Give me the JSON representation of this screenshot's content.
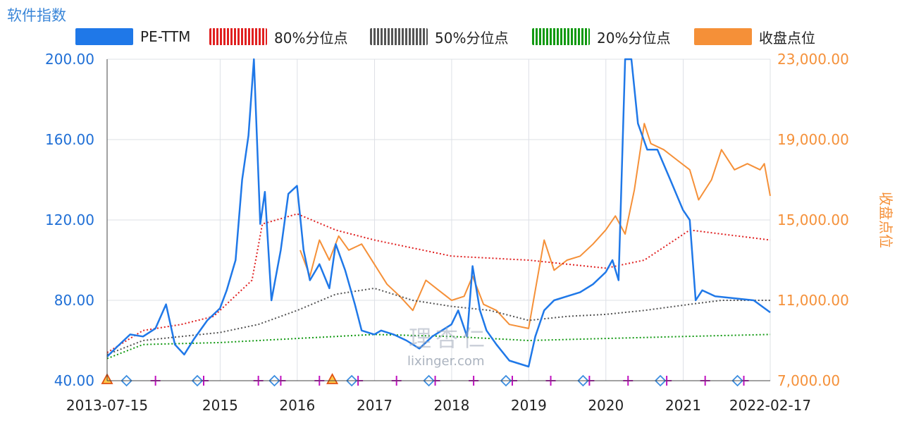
{
  "chart_data": {
    "type": "line",
    "title": "软件指数",
    "y_left": {
      "ticks": [
        "200.00",
        "160.00",
        "120.00",
        "80.00",
        "40.00"
      ],
      "range": [
        40,
        200
      ]
    },
    "y_right": {
      "label": "收盘点位",
      "ticks": [
        "23,000.00",
        "19,000.00",
        "15,000.00",
        "11,000.00",
        "7,000.00"
      ],
      "range": [
        7000,
        23000
      ]
    },
    "x_ticks": [
      "2013-07-15",
      "2015",
      "2016",
      "2017",
      "2018",
      "2019",
      "2020",
      "2021",
      "2022-02-17"
    ],
    "x_range": [
      "2013-07-15",
      "2022-02-17"
    ],
    "grid": true,
    "legend_position": "top",
    "colors": {
      "pe": "#1f78e8",
      "p80": "#e02020",
      "p50": "#555555",
      "p20": "#119911",
      "close": "#f59038",
      "plus": "#c010c0",
      "diamond": "#3c8ee0",
      "triangle": "#e05010"
    },
    "series": [
      {
        "name": "PE-TTM",
        "axis": "left",
        "points": [
          [
            "2013-07-15",
            52
          ],
          [
            "2013-09-01",
            57
          ],
          [
            "2013-11-01",
            63
          ],
          [
            "2014-01-01",
            62
          ],
          [
            "2014-03-01",
            66
          ],
          [
            "2014-04-20",
            78
          ],
          [
            "2014-06-01",
            58
          ],
          [
            "2014-07-15",
            53
          ],
          [
            "2014-09-01",
            61
          ],
          [
            "2014-11-01",
            70
          ],
          [
            "2014-12-31",
            76
          ],
          [
            "2015-02-01",
            85
          ],
          [
            "2015-03-15",
            100
          ],
          [
            "2015-04-15",
            140
          ],
          [
            "2015-05-15",
            162
          ],
          [
            "2015-06-10",
            200
          ],
          [
            "2015-07-10",
            118
          ],
          [
            "2015-08-01",
            134
          ],
          [
            "2015-09-01",
            80
          ],
          [
            "2015-10-15",
            105
          ],
          [
            "2015-11-20",
            133
          ],
          [
            "2015-12-31",
            137
          ],
          [
            "2016-01-31",
            105
          ],
          [
            "2016-03-01",
            90
          ],
          [
            "2016-04-15",
            98
          ],
          [
            "2016-06-01",
            86
          ],
          [
            "2016-07-01",
            108
          ],
          [
            "2016-08-15",
            95
          ],
          [
            "2016-09-30",
            78
          ],
          [
            "2016-11-01",
            65
          ],
          [
            "2016-12-31",
            63
          ],
          [
            "2017-02-01",
            65
          ],
          [
            "2017-04-01",
            63
          ],
          [
            "2017-06-01",
            60
          ],
          [
            "2017-08-01",
            56
          ],
          [
            "2017-10-01",
            62
          ],
          [
            "2017-12-31",
            68
          ],
          [
            "2018-02-01",
            75
          ],
          [
            "2018-03-15",
            62
          ],
          [
            "2018-04-10",
            97
          ],
          [
            "2018-05-15",
            75
          ],
          [
            "2018-06-15",
            65
          ],
          [
            "2018-08-01",
            58
          ],
          [
            "2018-10-01",
            50
          ],
          [
            "2018-12-31",
            47
          ],
          [
            "2019-02-01",
            62
          ],
          [
            "2019-03-15",
            75
          ],
          [
            "2019-05-01",
            80
          ],
          [
            "2019-07-01",
            82
          ],
          [
            "2019-09-01",
            84
          ],
          [
            "2019-11-01",
            88
          ],
          [
            "2019-12-31",
            94
          ],
          [
            "2020-02-01",
            100
          ],
          [
            "2020-03-01",
            90
          ],
          [
            "2020-04-01",
            200
          ],
          [
            "2020-05-01",
            200
          ],
          [
            "2020-06-01",
            168
          ],
          [
            "2020-07-15",
            155
          ],
          [
            "2020-09-01",
            155
          ],
          [
            "2020-11-01",
            140
          ],
          [
            "2020-12-31",
            125
          ],
          [
            "2021-02-01",
            120
          ],
          [
            "2021-03-01",
            80
          ],
          [
            "2021-04-01",
            85
          ],
          [
            "2021-06-01",
            82
          ],
          [
            "2021-09-01",
            81
          ],
          [
            "2021-12-01",
            80
          ],
          [
            "2022-02-17",
            74
          ]
        ]
      },
      {
        "name": "80%分位点",
        "axis": "left",
        "points": [
          [
            "2013-07-15",
            54
          ],
          [
            "2014-01-01",
            65
          ],
          [
            "2014-07-01",
            68
          ],
          [
            "2014-12-01",
            72
          ],
          [
            "2015-06-01",
            90
          ],
          [
            "2015-07-20",
            118
          ],
          [
            "2016-01-01",
            123
          ],
          [
            "2016-07-01",
            115
          ],
          [
            "2017-01-01",
            110
          ],
          [
            "2018-01-01",
            102
          ],
          [
            "2019-01-01",
            100
          ],
          [
            "2019-07-01",
            98
          ],
          [
            "2020-01-01",
            96
          ],
          [
            "2020-07-01",
            100
          ],
          [
            "2021-02-01",
            115
          ],
          [
            "2022-02-17",
            110
          ]
        ]
      },
      {
        "name": "50%分位点",
        "axis": "left",
        "points": [
          [
            "2013-07-15",
            53
          ],
          [
            "2014-01-01",
            60
          ],
          [
            "2014-07-01",
            62
          ],
          [
            "2015-01-01",
            64
          ],
          [
            "2015-07-01",
            68
          ],
          [
            "2016-01-01",
            75
          ],
          [
            "2016-07-01",
            83
          ],
          [
            "2016-12-31",
            86
          ],
          [
            "2017-07-01",
            80
          ],
          [
            "2018-01-01",
            77
          ],
          [
            "2018-07-01",
            75
          ],
          [
            "2019-01-01",
            70
          ],
          [
            "2019-07-01",
            72
          ],
          [
            "2020-01-01",
            73
          ],
          [
            "2020-07-01",
            75
          ],
          [
            "2021-02-01",
            78
          ],
          [
            "2021-07-01",
            80
          ],
          [
            "2022-02-17",
            80
          ]
        ]
      },
      {
        "name": "20%分位点",
        "axis": "left",
        "points": [
          [
            "2013-07-15",
            51
          ],
          [
            "2014-01-01",
            58
          ],
          [
            "2015-01-01",
            59
          ],
          [
            "2016-01-01",
            61
          ],
          [
            "2017-01-01",
            63
          ],
          [
            "2018-01-01",
            62
          ],
          [
            "2019-01-01",
            60
          ],
          [
            "2020-01-01",
            61
          ],
          [
            "2021-01-01",
            62
          ],
          [
            "2022-02-17",
            63
          ]
        ]
      },
      {
        "name": "收盘点位",
        "axis": "right",
        "points": [
          [
            "2016-01-15",
            13500
          ],
          [
            "2016-03-01",
            12200
          ],
          [
            "2016-04-15",
            14000
          ],
          [
            "2016-06-01",
            13000
          ],
          [
            "2016-07-15",
            14200
          ],
          [
            "2016-09-01",
            13500
          ],
          [
            "2016-11-01",
            13800
          ],
          [
            "2016-12-31",
            12800
          ],
          [
            "2017-03-01",
            11800
          ],
          [
            "2017-05-01",
            11200
          ],
          [
            "2017-07-01",
            10500
          ],
          [
            "2017-09-01",
            12000
          ],
          [
            "2017-11-01",
            11500
          ],
          [
            "2018-01-01",
            11000
          ],
          [
            "2018-03-01",
            11200
          ],
          [
            "2018-04-10",
            12200
          ],
          [
            "2018-06-01",
            10800
          ],
          [
            "2018-08-01",
            10500
          ],
          [
            "2018-10-01",
            9800
          ],
          [
            "2018-12-31",
            9600
          ],
          [
            "2019-02-01",
            11500
          ],
          [
            "2019-03-15",
            14000
          ],
          [
            "2019-05-01",
            12500
          ],
          [
            "2019-07-01",
            13000
          ],
          [
            "2019-09-01",
            13200
          ],
          [
            "2019-11-01",
            13800
          ],
          [
            "2019-12-31",
            14500
          ],
          [
            "2020-02-15",
            15200
          ],
          [
            "2020-04-01",
            14300
          ],
          [
            "2020-05-15",
            16500
          ],
          [
            "2020-07-01",
            19800
          ],
          [
            "2020-08-01",
            18800
          ],
          [
            "2020-10-01",
            18500
          ],
          [
            "2020-12-01",
            18000
          ],
          [
            "2021-02-01",
            17500
          ],
          [
            "2021-03-15",
            16000
          ],
          [
            "2021-05-15",
            17000
          ],
          [
            "2021-07-01",
            18500
          ],
          [
            "2021-09-01",
            17500
          ],
          [
            "2021-11-01",
            17800
          ],
          [
            "2021-12-31",
            17500
          ],
          [
            "2022-01-20",
            17800
          ],
          [
            "2022-02-17",
            16200
          ]
        ]
      }
    ],
    "markers": {
      "plus_dates": [
        "2014-03-01",
        "2014-10-15",
        "2015-07-01",
        "2015-10-15",
        "2016-04-15",
        "2016-10-15",
        "2017-04-15",
        "2017-10-15",
        "2018-04-15",
        "2018-10-15",
        "2019-04-15",
        "2019-10-15",
        "2020-04-15",
        "2020-10-15",
        "2021-04-15",
        "2021-10-15"
      ],
      "diamond_dates": [
        "2013-10-15",
        "2014-09-15",
        "2015-09-15",
        "2016-09-15",
        "2017-09-15",
        "2018-09-15",
        "2019-09-15",
        "2020-09-15",
        "2021-09-15"
      ],
      "triangle_dates": [
        "2013-07-15",
        "2016-06-15"
      ]
    }
  },
  "watermark": {
    "brand": "理杏仁",
    "url": "lixinger.com"
  }
}
